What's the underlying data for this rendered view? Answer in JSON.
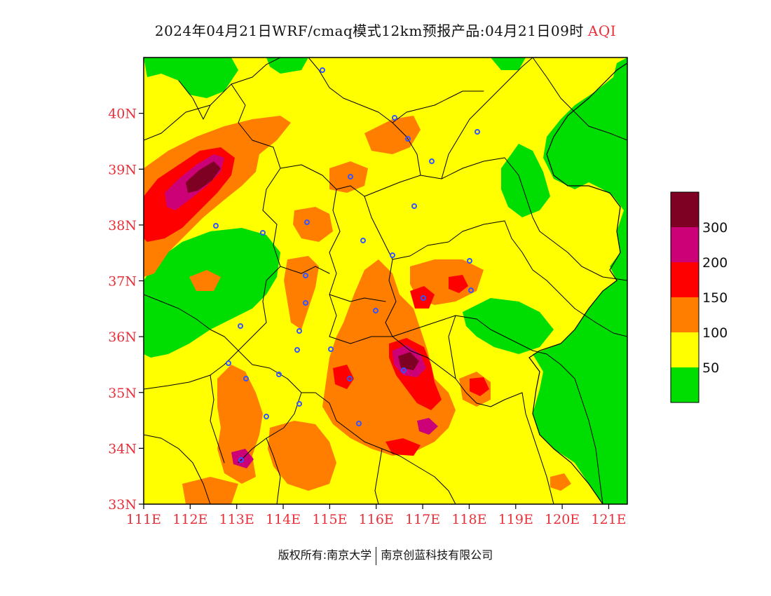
{
  "title": {
    "text": "2024年04月21日WRF/cmaq模式12km预报产品:04月21日09时",
    "variable": "AQI",
    "variable_color": "#e8303a"
  },
  "map": {
    "lon_range": [
      111,
      121.4
    ],
    "lat_range": [
      33,
      41
    ],
    "x_ticks": [
      "111E",
      "112E",
      "113E",
      "114E",
      "115E",
      "116E",
      "117E",
      "118E",
      "119E",
      "120E",
      "121E"
    ],
    "y_ticks": [
      "33N",
      "34N",
      "35N",
      "36N",
      "37N",
      "38N",
      "39N",
      "40N"
    ],
    "tick_color": "#e8303a",
    "background_class_color": "#ffff00"
  },
  "legend": {
    "title": "AQI",
    "labels": [
      "50",
      "100",
      "150",
      "200",
      "300"
    ],
    "classes": [
      {
        "range": "0-50",
        "color": "#00dd00"
      },
      {
        "range": "50-100",
        "color": "#ffff00"
      },
      {
        "range": "100-150",
        "color": "#ff7e00"
      },
      {
        "range": "150-200",
        "color": "#ff0000"
      },
      {
        "range": "200-300",
        "color": "#cc0077"
      },
      {
        "range": ">300",
        "color": "#7e0023"
      }
    ]
  },
  "stations_color": "#3355ff",
  "footer": {
    "left": "版权所有:南京大学",
    "right": "南京创蓝科技有限公司"
  }
}
